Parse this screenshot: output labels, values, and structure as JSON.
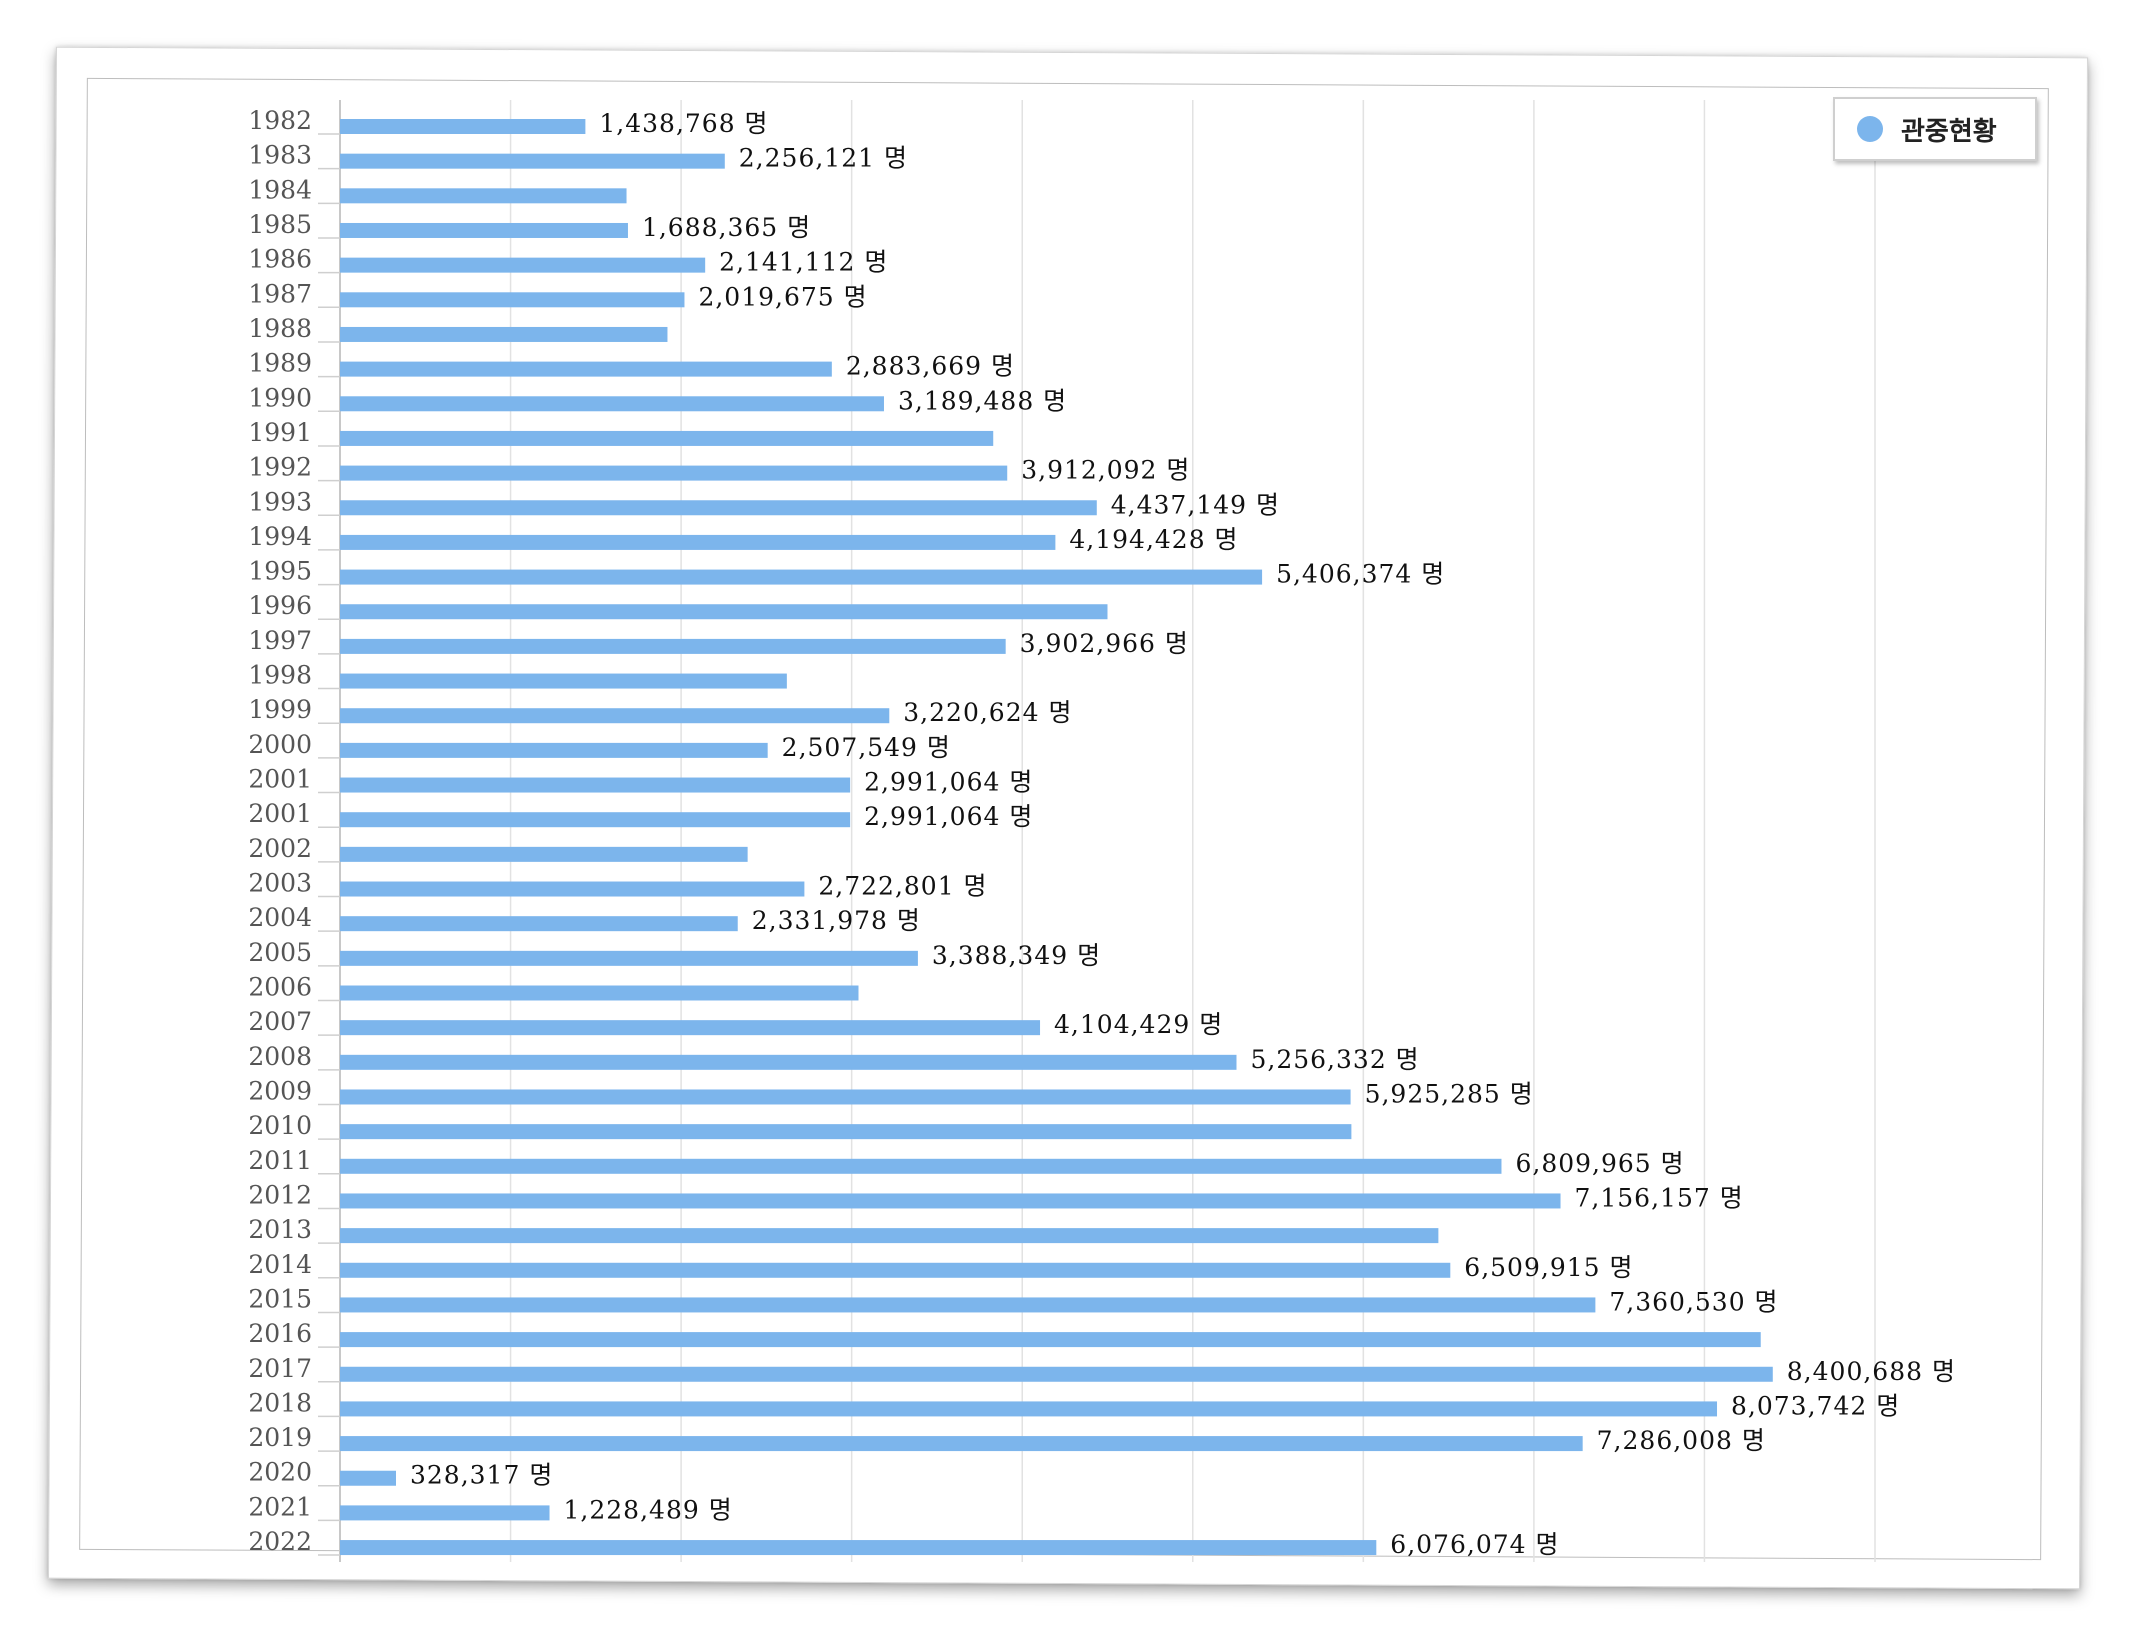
{
  "chart_data": {
    "type": "bar",
    "orientation": "horizontal",
    "title": "",
    "xlabel": "",
    "ylabel": "",
    "xlim": [
      0,
      9000000
    ],
    "grid": true,
    "legend_position": "top-right",
    "series_name": "관중현황",
    "unit_suffix": "명",
    "bar_color": "#7cb5ec",
    "categories": [
      "1982",
      "1983",
      "1984",
      "1985",
      "1986",
      "1987",
      "1988",
      "1989",
      "1990",
      "1991",
      "1992",
      "1993",
      "1994",
      "1995",
      "1996",
      "1997",
      "1998",
      "1999",
      "2000",
      "2001",
      "2001",
      "2002",
      "2003",
      "2004",
      "2005",
      "2006",
      "2007",
      "2008",
      "2009",
      "2010",
      "2011",
      "2012",
      "2013",
      "2014",
      "2015",
      "2016",
      "2017",
      "2018",
      "2019",
      "2020",
      "2021",
      "2022"
    ],
    "values": [
      1438768,
      2256121,
      1680000,
      1688365,
      2141112,
      2019675,
      1920000,
      2883669,
      3189488,
      3830000,
      3912092,
      4437149,
      4194428,
      5406374,
      4500000,
      3902966,
      2620000,
      3220624,
      2507549,
      2991064,
      2991064,
      2390000,
      2722801,
      2331978,
      3388349,
      3040000,
      4104429,
      5256332,
      5925285,
      5930000,
      6809965,
      7156157,
      6440000,
      6509915,
      7360530,
      8330000,
      8400688,
      8073742,
      7286008,
      328317,
      1228489,
      6076074
    ],
    "labels": [
      "1,438,768 명",
      "2,256,121 명",
      "",
      "1,688,365 명",
      "2,141,112 명",
      "2,019,675 명",
      "",
      "2,883,669 명",
      "3,189,488 명",
      "",
      "3,912,092 명",
      "4,437,149 명",
      "4,194,428 명",
      "5,406,374 명",
      "",
      "3,902,966 명",
      "",
      "3,220,624 명",
      "2,507,549 명",
      "2,991,064 명",
      "2,991,064 명",
      "",
      "2,722,801 명",
      "2,331,978 명",
      "3,388,349 명",
      "",
      "4,104,429 명",
      "5,256,332 명",
      "5,925,285 명",
      "",
      "6,809,965 명",
      "7,156,157 명",
      "",
      "6,509,915 명",
      "7,360,530 명",
      "",
      "8,400,688 명",
      "8,073,742 명",
      "7,286,008 명",
      "328,317 명",
      "1,228,489 명",
      "6,076,074 명"
    ]
  },
  "legend": {
    "label": "관중현황",
    "icon": "circle-marker-icon",
    "color": "#7cb5ec"
  }
}
